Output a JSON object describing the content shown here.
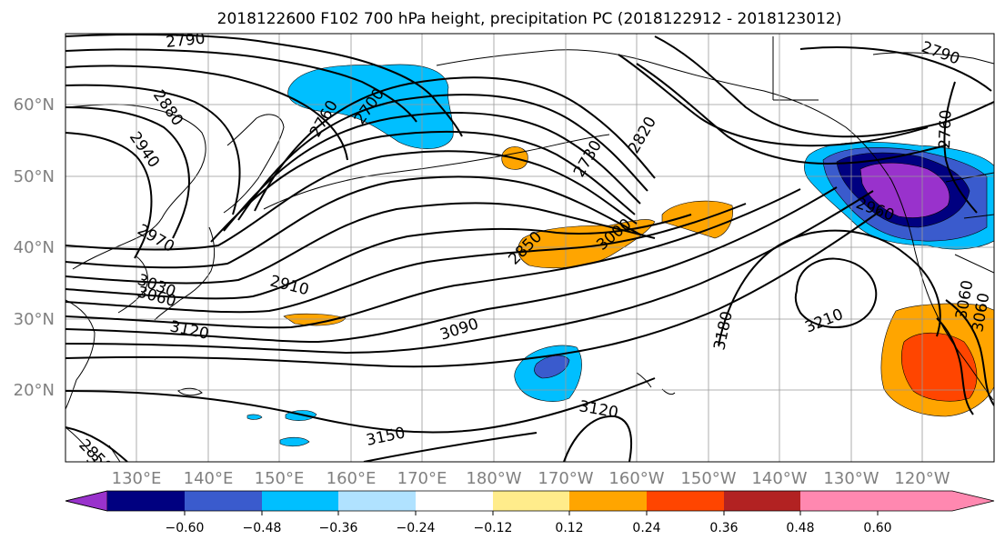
{
  "title": "2018122600 F102 700 hPa height, precipitation PC (2018122912 - 2018123012)",
  "map": {
    "lon_labels": [
      "130°E",
      "140°E",
      "150°E",
      "160°E",
      "170°E",
      "180°W",
      "170°W",
      "160°W",
      "150°W",
      "140°W",
      "130°W",
      "120°W"
    ],
    "lat_labels": [
      "60°N",
      "50°N",
      "40°N",
      "30°N",
      "20°N"
    ],
    "contour_labels": [
      "2790",
      "2790",
      "2880",
      "2940",
      "2970",
      "3030",
      "3060",
      "2760",
      "2700",
      "2730",
      "2820",
      "2850",
      "3000",
      "2910",
      "3090",
      "3120",
      "3120",
      "3150",
      "3180",
      "3210",
      "2760",
      "2960",
      "3060",
      "3060",
      "2850",
      "3150"
    ]
  },
  "colorbar": {
    "tick_labels": [
      "−0.60",
      "−0.48",
      "−0.36",
      "−0.24",
      "−0.12",
      "0.12",
      "0.24",
      "0.36",
      "0.48",
      "0.60"
    ],
    "colors": [
      "#9932cc",
      "#000080",
      "#3a5bcd",
      "#00bfff",
      "#b0e2ff",
      "#ffffff",
      "#ffec8b",
      "#ffa500",
      "#ff4500",
      "#b22222",
      "#ff88b0"
    ]
  }
}
